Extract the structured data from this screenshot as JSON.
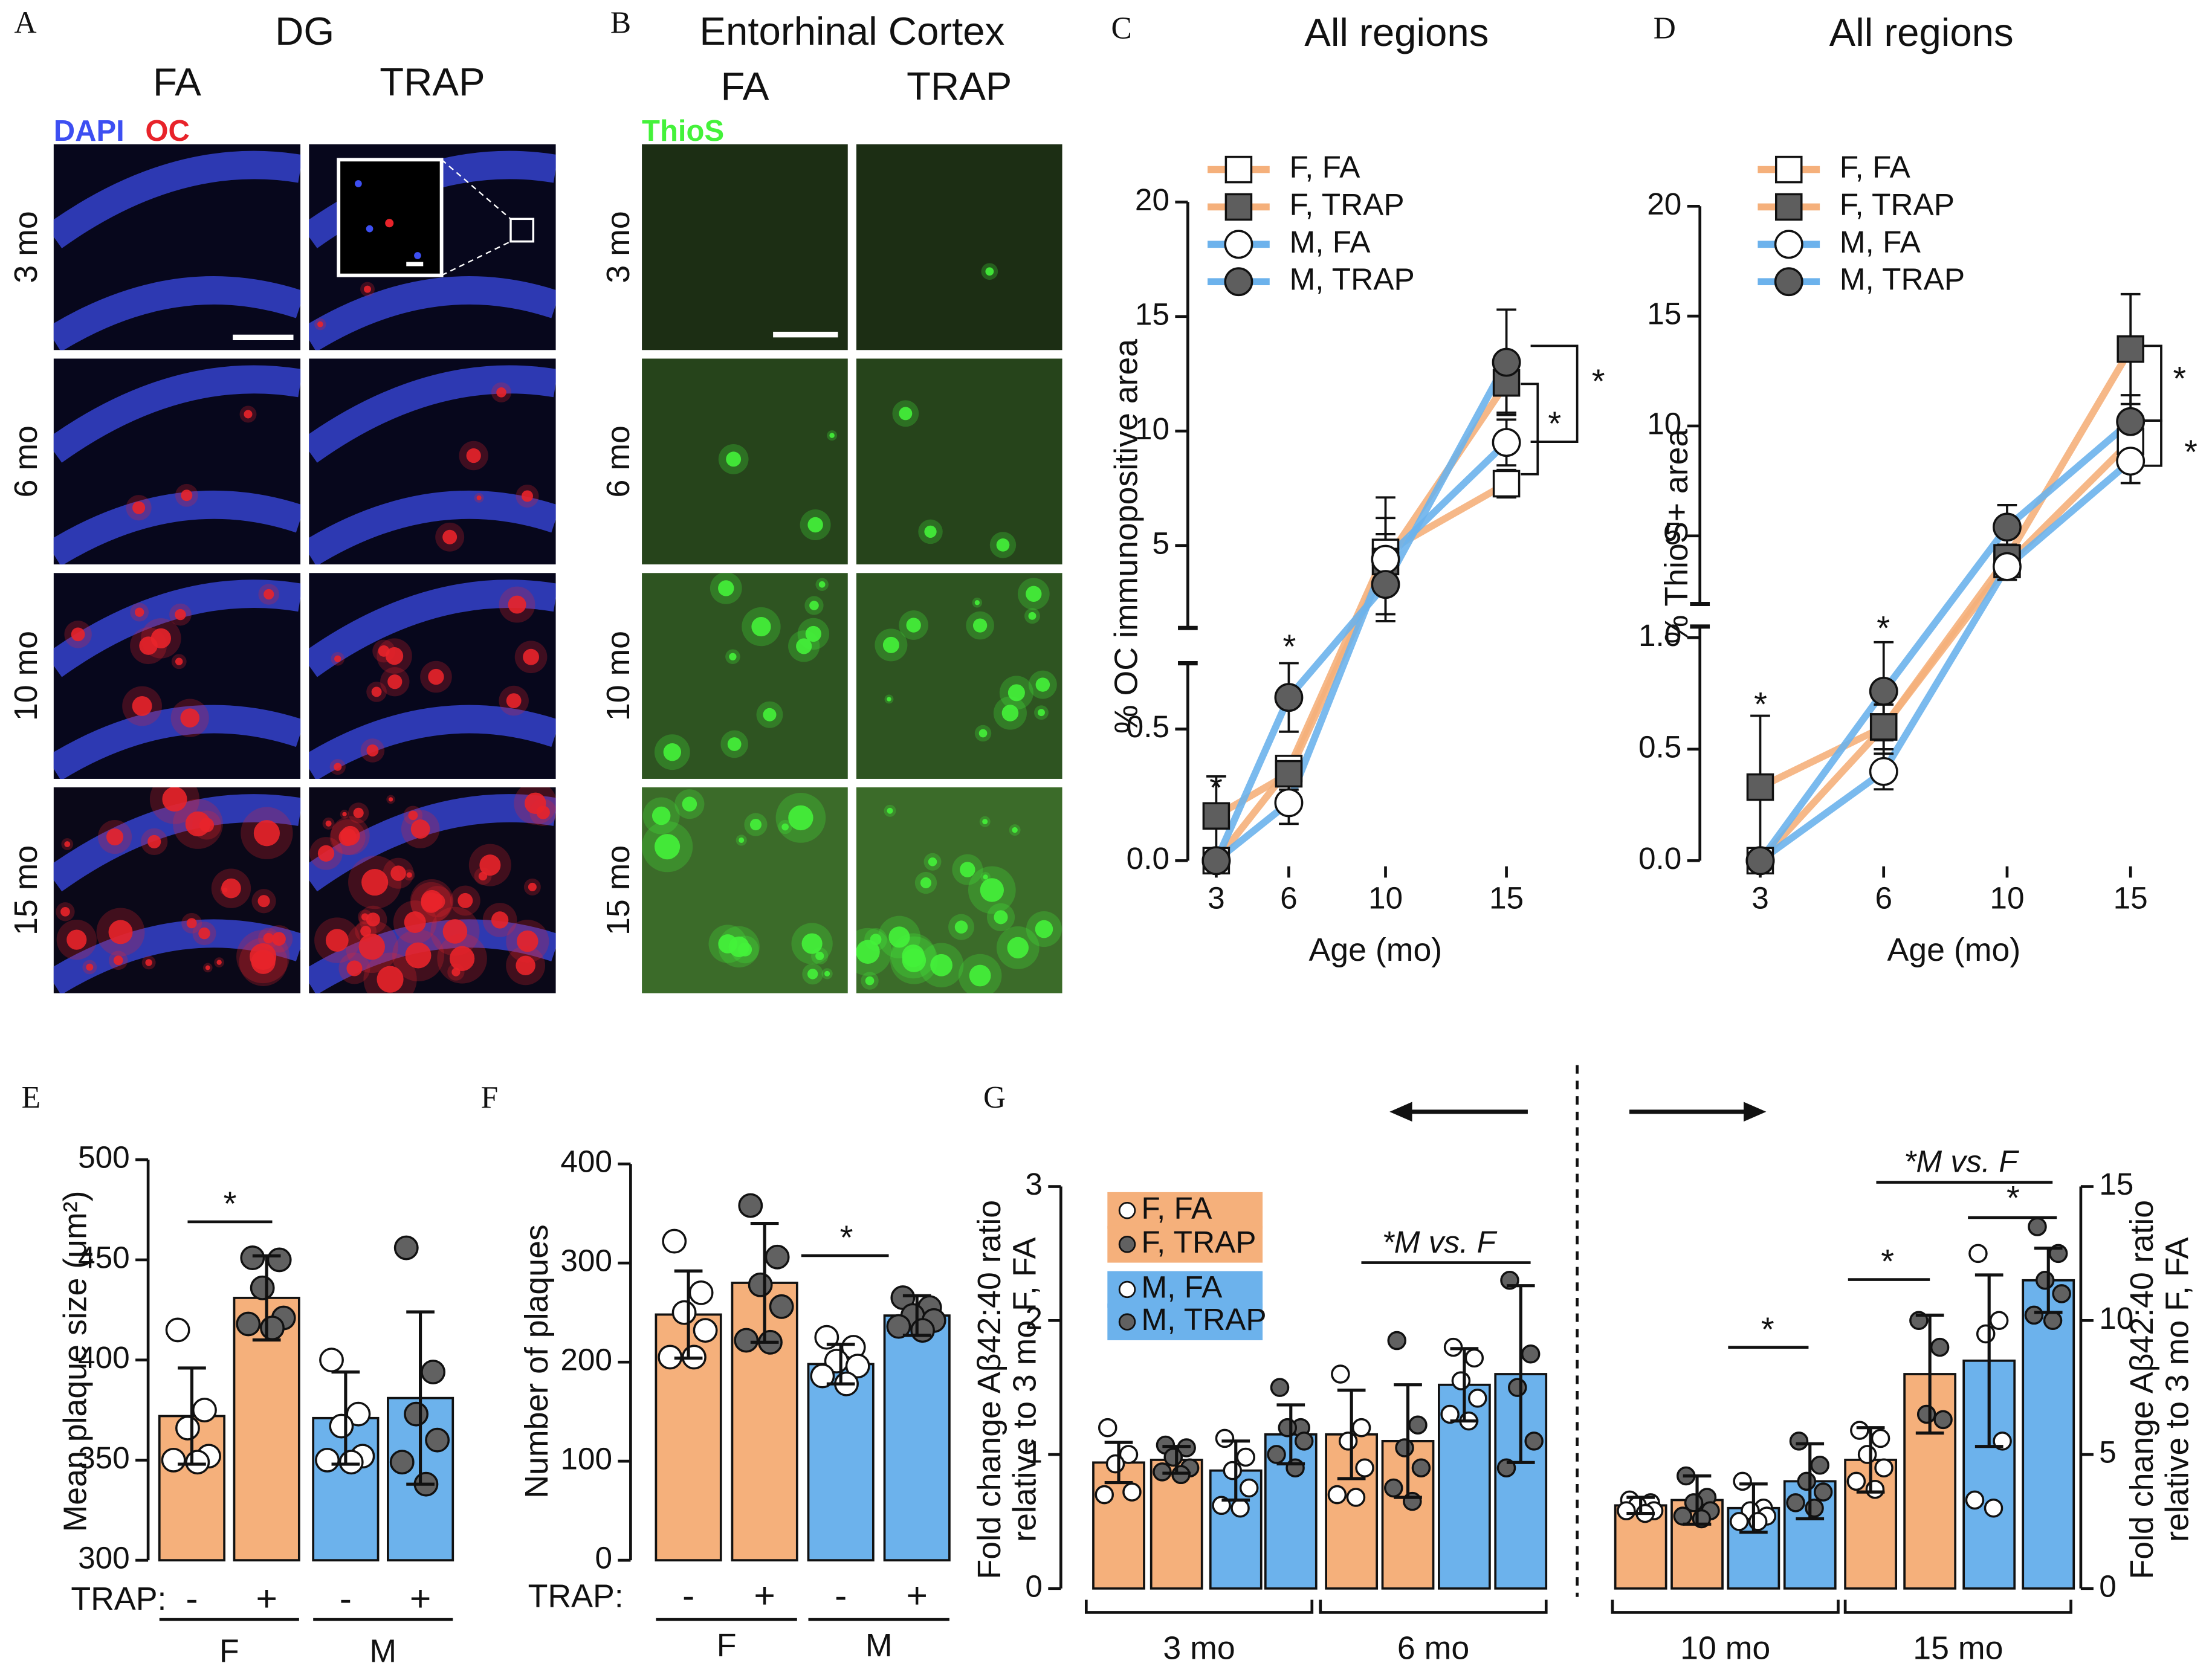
{
  "chart_data": [
    {
      "type": "micrograph",
      "panel": "A",
      "title": "DG",
      "columns": [
        "FA",
        "TRAP"
      ],
      "channels": [
        {
          "name": "DAPI",
          "color": "#3d4ff2"
        },
        {
          "name": "OC",
          "color": "#e8232a"
        }
      ],
      "rows": [
        "3 mo",
        "6 mo",
        "10 mo",
        "15 mo"
      ]
    },
    {
      "type": "micrograph",
      "panel": "B",
      "title": "Entorhinal Cortex",
      "columns": [
        "FA",
        "TRAP"
      ],
      "channels": [
        {
          "name": "ThioS",
          "color": "#44f23a"
        }
      ],
      "rows": [
        "3 mo",
        "6 mo",
        "10 mo",
        "15 mo"
      ]
    },
    {
      "type": "line",
      "panel": "C",
      "title": "All regions",
      "xlabel": "Age (mo)",
      "ylabel": "% OC immunopositive area",
      "x": [
        3,
        6,
        10,
        15
      ],
      "xlim": [
        2,
        16
      ],
      "xticks": [
        3,
        6,
        10,
        15
      ],
      "y_segments": [
        {
          "ylim": [
            0,
            0.75
          ],
          "yticks": [
            {
              "value": 0,
              "label": "0.0"
            },
            {
              "value": 0.5,
              "label": "0.5"
            }
          ]
        },
        {
          "ylim": [
            1.4,
            20
          ],
          "yticks": [
            5,
            10,
            15,
            20
          ]
        }
      ],
      "series": [
        {
          "name": "F, FA",
          "color": "#f5b07b",
          "marker": "square",
          "marker_fill": "#ffffff",
          "values": [
            0,
            0.35,
            4.7,
            7.7
          ],
          "errors": [
            0,
            0.04,
            1.5,
            0.6
          ]
        },
        {
          "name": "F, TRAP",
          "color": "#f5b07b",
          "marker": "square",
          "marker_fill": "#5e5e5e",
          "values": [
            0.17,
            0.33,
            4.3,
            12.1
          ],
          "errors": [
            0.15,
            0.06,
            1.2,
            1.3
          ]
        },
        {
          "name": "M, FA",
          "color": "#6cb2ec",
          "marker": "circle",
          "marker_fill": "#ffffff",
          "values": [
            0,
            0.22,
            4.4,
            9.5
          ],
          "errors": [
            0,
            0.08,
            2.7,
            1.0
          ]
        },
        {
          "name": "M, TRAP",
          "color": "#6cb2ec",
          "marker": "circle",
          "marker_fill": "#5e5e5e",
          "values": [
            0,
            0.62,
            3.3,
            13.0
          ],
          "errors": [
            0,
            0.13,
            1.3,
            2.3
          ]
        }
      ],
      "annotations": [
        "*",
        "*",
        "*",
        "*"
      ]
    },
    {
      "type": "line",
      "panel": "D",
      "title": "All regions",
      "xlabel": "Age (mo)",
      "ylabel": "% ThioS+ area",
      "categories": [
        "3",
        "6",
        "10",
        "15"
      ],
      "y_segments": [
        {
          "ylim": [
            0,
            1.05
          ],
          "yticks": [
            {
              "value": 0,
              "label": "0.0"
            },
            {
              "value": 0.5,
              "label": "0.5"
            },
            {
              "value": 1,
              "label": "1.0"
            }
          ]
        },
        {
          "ylim": [
            1.9,
            20
          ],
          "yticks": [
            5,
            10,
            15,
            20
          ]
        }
      ],
      "series": [
        {
          "name": "F, FA",
          "color": "#f5b07b",
          "marker": "square",
          "marker_fill": "#ffffff",
          "values": [
            0,
            0.6,
            3.7,
            9.3
          ],
          "errors": [
            0,
            0.1,
            0.5,
            1.0
          ]
        },
        {
          "name": "F, TRAP",
          "color": "#f5b07b",
          "marker": "square",
          "marker_fill": "#5e5e5e",
          "values": [
            0.33,
            0.6,
            4.0,
            13.5
          ],
          "errors": [
            0.32,
            0.2,
            0.6,
            2.5
          ]
        },
        {
          "name": "M, FA",
          "color": "#6cb2ec",
          "marker": "circle",
          "marker_fill": "#ffffff",
          "values": [
            0,
            0.4,
            3.6,
            8.4
          ],
          "errors": [
            0,
            0.08,
            0.6,
            1.0
          ]
        },
        {
          "name": "M, TRAP",
          "color": "#6cb2ec",
          "marker": "circle",
          "marker_fill": "#5e5e5e",
          "values": [
            0,
            0.76,
            5.4,
            10.2
          ],
          "errors": [
            0,
            0.22,
            1.0,
            1.2
          ]
        }
      ],
      "annotations": [
        "*",
        "*",
        "*",
        "*"
      ]
    },
    {
      "type": "bar",
      "panel": "E",
      "ylabel": "Mean plaque size (μm²)",
      "ylim": [
        300,
        500
      ],
      "yticks": [
        300,
        350,
        400,
        450,
        500
      ],
      "category_label": "TRAP:",
      "point_fills": [
        "#ffffff",
        "#616161"
      ],
      "groups": [
        {
          "label": "F",
          "color": "#f5b07b",
          "categories": [
            "-",
            "+"
          ],
          "values": [
            372,
            431
          ],
          "errors": [
            24,
            21
          ],
          "points": [
            [
              415,
              375,
              366,
              352,
              350,
              349
            ],
            [
              451,
              450,
              436,
              421,
              418,
              416
            ]
          ]
        },
        {
          "label": "M",
          "color": "#6cb2ec",
          "categories": [
            "-",
            "+"
          ],
          "values": [
            371,
            381
          ],
          "errors": [
            23,
            43
          ],
          "points": [
            [
              400,
              373,
              367,
              352,
              350,
              349
            ],
            [
              456,
              394,
              373,
              360,
              349,
              338
            ]
          ]
        }
      ],
      "annotations": [
        "*"
      ]
    },
    {
      "type": "bar",
      "panel": "F",
      "ylabel": "Number of plaques",
      "ylim": [
        0,
        400
      ],
      "yticks": [
        0,
        100,
        200,
        300,
        400
      ],
      "category_label": "TRAP:",
      "point_fills": [
        "#ffffff",
        "#616161"
      ],
      "groups": [
        {
          "label": "F",
          "color": "#f5b07b",
          "categories": [
            "-",
            "+"
          ],
          "values": [
            248,
            280
          ],
          "errors": [
            44,
            60
          ],
          "points": [
            [
              322,
              270,
              250,
              232,
              205,
              205
            ],
            [
              358,
              306,
              278,
              256,
              222,
              220
            ]
          ]
        },
        {
          "label": "M",
          "color": "#6cb2ec",
          "categories": [
            "-",
            "+"
          ],
          "values": [
            198,
            247
          ],
          "errors": [
            20,
            20
          ],
          "points": [
            [
              225,
              215,
              201,
              196,
              186,
              178
            ],
            [
              265,
              255,
              247,
              242,
              236,
              232
            ]
          ]
        }
      ],
      "annotations": [
        "*"
      ]
    },
    {
      "type": "bar",
      "panel": "G",
      "ylabel": [
        "Fold change Aβ42:40 ratio",
        "relative to 3 mo F, FA"
      ],
      "y2label": [
        "Fold change Aβ42:40 ratio",
        "relative to 3 mo F, FA"
      ],
      "ylim": [
        0,
        3
      ],
      "yticks": [
        0,
        1,
        2,
        3
      ],
      "y2lim": [
        0,
        15
      ],
      "y2ticks": [
        0,
        5,
        10,
        15
      ],
      "series": [
        {
          "name": "F, FA",
          "color": "#f5b07b",
          "point_fill": "#ffffff"
        },
        {
          "name": "F, TRAP",
          "color": "#f5b07b",
          "point_fill": "#616161"
        },
        {
          "name": "M, FA",
          "color": "#6cb2ec",
          "point_fill": "#ffffff"
        },
        {
          "name": "M, TRAP",
          "color": "#6cb2ec",
          "point_fill": "#616161"
        }
      ],
      "groups": [
        {
          "label": "3 mo",
          "axis": "y",
          "values": [
            0.94,
            0.96,
            0.88,
            1.15
          ],
          "errors": [
            0.15,
            0.1,
            0.22,
            0.22
          ],
          "points": [
            [
              1.2,
              1.0,
              0.93,
              0.72,
              0.7
            ],
            [
              1.07,
              1.05,
              0.98,
              0.9,
              0.87,
              0.85
            ],
            [
              1.12,
              0.98,
              0.88,
              0.75,
              0.62,
              0.6
            ],
            [
              1.5,
              1.2,
              1.2,
              1.1,
              1.0,
              0.9
            ]
          ]
        },
        {
          "label": "6 mo",
          "axis": "y",
          "values": [
            1.15,
            1.1,
            1.52,
            1.6
          ],
          "errors": [
            0.33,
            0.42,
            0.27,
            0.66
          ],
          "points": [
            [
              1.6,
              1.2,
              1.1,
              0.9,
              0.7,
              0.68
            ],
            [
              1.85,
              1.22,
              1.05,
              0.9,
              0.75,
              0.65
            ],
            [
              1.8,
              1.72,
              1.55,
              1.42,
              1.3,
              1.25
            ],
            [
              2.3,
              1.75,
              1.5,
              1.1,
              0.9
            ]
          ]
        },
        {
          "label": "10 mo",
          "axis": "y2",
          "values": [
            3.1,
            3.3,
            3.0,
            4.0
          ],
          "errors": [
            0.3,
            0.9,
            0.9,
            1.4
          ],
          "points": [
            [
              3.3,
              3.2,
              3.1,
              2.9,
              2.9,
              2.8
            ],
            [
              4.2,
              3.4,
              3.2,
              2.9,
              2.7,
              2.6
            ],
            [
              4.0,
              3.0,
              2.9,
              2.7,
              2.5,
              2.5
            ],
            [
              5.5,
              4.6,
              4.0,
              3.6,
              3.2,
              3.0
            ]
          ]
        },
        {
          "label": "15 mo",
          "axis": "y2",
          "values": [
            4.8,
            8.0,
            8.5,
            11.5
          ],
          "errors": [
            1.2,
            2.2,
            3.2,
            1.2
          ],
          "points": [
            [
              5.9,
              5.6,
              5.0,
              4.5,
              4.0,
              3.7
            ],
            [
              10.0,
              9.0,
              6.5,
              6.3
            ],
            [
              12.5,
              10.0,
              9.5,
              5.5,
              3.3,
              3.0
            ],
            [
              13.5,
              12.5,
              11.5,
              11.0,
              10.2,
              10.0
            ]
          ]
        }
      ],
      "annotations": [
        "*M vs. F",
        "*",
        "*",
        "*M vs. F",
        "*"
      ]
    }
  ]
}
